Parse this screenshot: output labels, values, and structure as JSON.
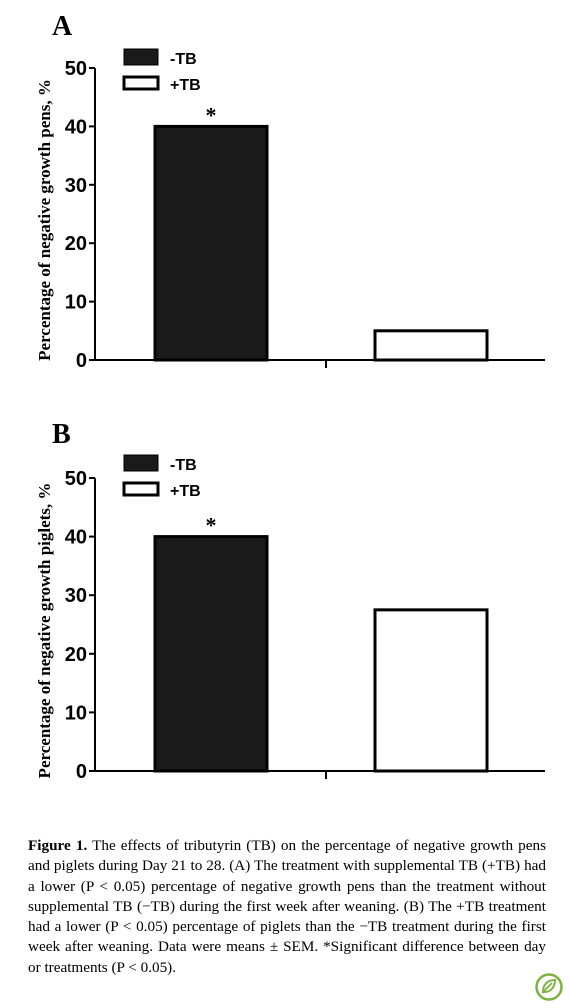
{
  "chart_data": [
    {
      "panel": "A",
      "type": "bar",
      "categories": [
        "-TB",
        "+TB"
      ],
      "series": [
        {
          "name": "-TB",
          "values": [
            40,
            null
          ],
          "fill": "#1a1a1a"
        },
        {
          "name": "+TB",
          "values": [
            null,
            5
          ],
          "fill": "#ffffff"
        }
      ],
      "values": [
        40,
        5
      ],
      "ylabel": "Percentage of negative growth pens, %",
      "ylim": [
        0,
        50
      ],
      "yticks": [
        0,
        10,
        20,
        30,
        40,
        50
      ],
      "ytick_labels": [
        "0",
        "10",
        "20",
        "30",
        "40",
        "50"
      ],
      "annotations": [
        {
          "category": "-TB",
          "text": "*"
        }
      ],
      "legend": {
        "placement": "top-left",
        "entries": [
          "-TB",
          "+TB"
        ]
      },
      "grid": false
    },
    {
      "panel": "B",
      "type": "bar",
      "categories": [
        "-TB",
        "+TB"
      ],
      "series": [
        {
          "name": "-TB",
          "values": [
            40,
            null
          ],
          "fill": "#1a1a1a"
        },
        {
          "name": "+TB",
          "values": [
            null,
            27.5
          ],
          "fill": "#ffffff"
        }
      ],
      "values": [
        40,
        27.5
      ],
      "ylabel": "Percentage of negative growth piglets, %",
      "ylim": [
        0,
        50
      ],
      "yticks": [
        0,
        10,
        20,
        30,
        40,
        50
      ],
      "ytick_labels": [
        "0",
        "10",
        "20",
        "30",
        "40",
        "50"
      ],
      "annotations": [
        {
          "category": "-TB",
          "text": "*"
        }
      ],
      "legend": {
        "placement": "top-left",
        "entries": [
          "-TB",
          "+TB"
        ]
      },
      "grid": false
    }
  ],
  "caption": {
    "label": "Figure 1.",
    "text": " The effects of tributyrin (TB) on the percentage of negative growth pens and piglets during Day 21 to 28. (A) The treatment with supplemental TB (+TB) had a lower (P < 0.05) percentage of negative growth pens than the treatment without supplemental TB (−TB) during the first week after weaning. (B) The +TB treatment had a lower (P < 0.05) percentage of piglets than the −TB treatment during the first week after weaning. Data were means ± SEM. *Significant difference between day or treatments (P < 0.05)."
  },
  "logo": {
    "icon": "leaf-logo-icon",
    "color": "#7cb342"
  }
}
